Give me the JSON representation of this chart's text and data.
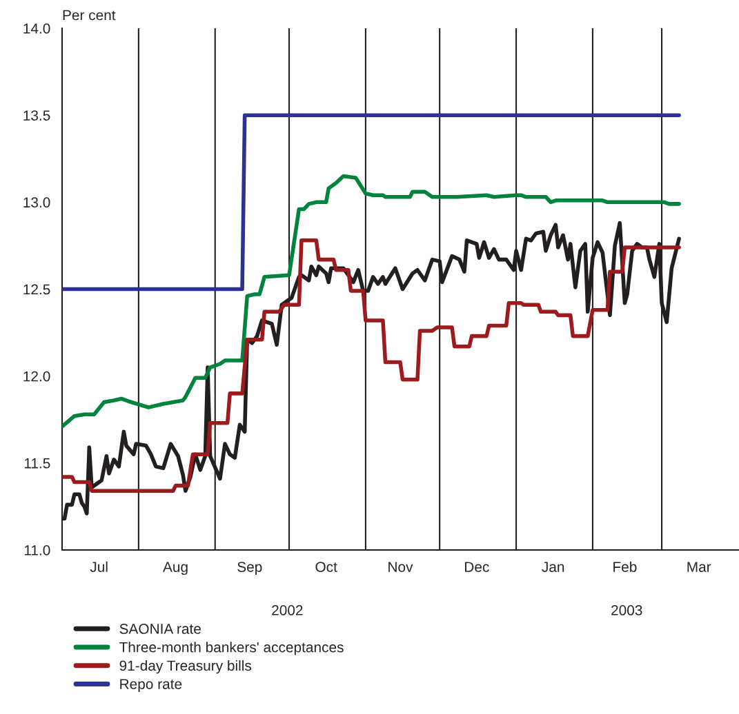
{
  "chart_data": {
    "type": "line",
    "ylabel": "Per cent",
    "xlim": [
      "2002-07-01",
      "2003-04-01"
    ],
    "ylim": [
      11.0,
      14.0
    ],
    "yticks": [
      {
        "value": 11,
        "label": "11.0"
      },
      {
        "value": 11.5,
        "label": "11.5"
      },
      {
        "value": 12,
        "label": "12.0"
      },
      {
        "value": 12.5,
        "label": "12.5"
      },
      {
        "value": 13,
        "label": "13.0"
      },
      {
        "value": 13.5,
        "label": "13.5"
      },
      {
        "value": 14,
        "label": "14.0"
      }
    ],
    "xticks": [
      {
        "value": "2002-07-16",
        "label": "Jul"
      },
      {
        "value": "2002-08-16",
        "label": "Aug"
      },
      {
        "value": "2002-09-15",
        "label": "Sep"
      },
      {
        "value": "2002-10-16",
        "label": "Oct"
      },
      {
        "value": "2002-11-15",
        "label": "Nov"
      },
      {
        "value": "2002-12-16",
        "label": "Dec"
      },
      {
        "value": "2003-01-16",
        "label": "Jan"
      },
      {
        "value": "2003-02-14",
        "label": "Feb"
      },
      {
        "value": "2003-03-16",
        "label": "Mar"
      }
    ],
    "annotations": [
      "2002",
      "2003"
    ],
    "ref_lines": [
      {
        "axis": "x",
        "value": "2002-08-01",
        "color": "#231f20"
      },
      {
        "axis": "x",
        "value": "2002-09-01",
        "color": "#231f20"
      },
      {
        "axis": "x",
        "value": "2002-10-01",
        "color": "#231f20"
      },
      {
        "axis": "x",
        "value": "2002-11-01",
        "color": "#231f20"
      },
      {
        "axis": "x",
        "value": "2002-12-01",
        "color": "#231f20"
      },
      {
        "axis": "x",
        "value": "2003-01-01",
        "color": "#231f20"
      },
      {
        "axis": "x",
        "value": "2003-02-01",
        "color": "#231f20"
      },
      {
        "axis": "x",
        "value": "2003-03-01",
        "color": "#231f20"
      }
    ],
    "grid": false,
    "legend": "bottom",
    "marker": "none",
    "line_style": "solid",
    "series": [
      {
        "name": "SAONIA rate",
        "color": "#231f20",
        "x": [
          "2002-07-01",
          "2002-07-02",
          "2002-07-03",
          "2002-07-05",
          "2002-07-06",
          "2002-07-08",
          "2002-07-09",
          "2002-07-10",
          "2002-07-11",
          "2002-07-12",
          "2002-07-13",
          "2002-07-15",
          "2002-07-17",
          "2002-07-19",
          "2002-07-20",
          "2002-07-22",
          "2002-07-24",
          "2002-07-26",
          "2002-07-27",
          "2002-07-30",
          "2002-07-31",
          "2002-08-04",
          "2002-08-06",
          "2002-08-08",
          "2002-08-11",
          "2002-08-14",
          "2002-08-17",
          "2002-08-19",
          "2002-08-20",
          "2002-08-22",
          "2002-08-24",
          "2002-08-26",
          "2002-08-28",
          "2002-08-29",
          "2002-08-30",
          "2002-09-03",
          "2002-09-05",
          "2002-09-07",
          "2002-09-09",
          "2002-09-11",
          "2002-09-13",
          "2002-09-14",
          "2002-09-16",
          "2002-09-18",
          "2002-09-20",
          "2002-09-24",
          "2002-09-26",
          "2002-09-28",
          "2002-10-02",
          "2002-10-05",
          "2002-10-06",
          "2002-10-09",
          "2002-10-10",
          "2002-10-12",
          "2002-10-13",
          "2002-10-16",
          "2002-10-17",
          "2002-10-18",
          "2002-10-23",
          "2002-10-27",
          "2002-10-29",
          "2002-10-31",
          "2002-11-02",
          "2002-11-04",
          "2002-11-06",
          "2002-11-08",
          "2002-11-09",
          "2002-11-13",
          "2002-11-16",
          "2002-11-20",
          "2002-11-22",
          "2002-11-25",
          "2002-11-28",
          "2002-12-01",
          "2002-12-02",
          "2002-12-06",
          "2002-12-09",
          "2002-12-11",
          "2002-12-12",
          "2002-12-16",
          "2002-12-17",
          "2002-12-19",
          "2002-12-21",
          "2002-12-23",
          "2002-12-25",
          "2002-12-28",
          "2002-12-31",
          "2003-01-01",
          "2003-01-03",
          "2003-01-05",
          "2003-01-07",
          "2003-01-09",
          "2003-01-12",
          "2003-01-13",
          "2003-01-15",
          "2003-01-17",
          "2003-01-18",
          "2003-01-20",
          "2003-01-22",
          "2003-01-23",
          "2003-01-25",
          "2003-01-27",
          "2003-01-29",
          "2003-01-30",
          "2003-02-01",
          "2003-02-03",
          "2003-02-05",
          "2003-02-08",
          "2003-02-10",
          "2003-02-12",
          "2003-02-14",
          "2003-02-15",
          "2003-02-17",
          "2003-02-19",
          "2003-02-21",
          "2003-02-23",
          "2003-02-24",
          "2003-02-26",
          "2003-02-28",
          "2003-03-01",
          "2003-03-03",
          "2003-03-05",
          "2003-03-08"
        ],
        "values": [
          11.18,
          11.18,
          11.26,
          11.26,
          11.32,
          11.32,
          11.27,
          11.25,
          11.21,
          11.59,
          11.36,
          11.38,
          11.4,
          11.54,
          11.44,
          11.52,
          11.48,
          11.68,
          11.6,
          11.55,
          11.61,
          11.6,
          11.55,
          11.48,
          11.47,
          11.61,
          11.54,
          11.43,
          11.34,
          11.42,
          11.55,
          11.46,
          11.54,
          12.05,
          11.54,
          11.41,
          11.61,
          11.55,
          11.53,
          11.72,
          11.68,
          12.21,
          12.19,
          12.23,
          12.32,
          12.3,
          12.18,
          12.41,
          12.45,
          12.57,
          12.58,
          12.55,
          12.63,
          12.58,
          12.63,
          12.59,
          12.54,
          12.62,
          12.62,
          12.54,
          12.61,
          12.49,
          12.49,
          12.57,
          12.53,
          12.57,
          12.53,
          12.62,
          12.5,
          12.59,
          12.61,
          12.55,
          12.67,
          12.66,
          12.54,
          12.69,
          12.67,
          12.6,
          12.78,
          12.76,
          12.68,
          12.77,
          12.68,
          12.73,
          12.67,
          12.67,
          12.61,
          12.72,
          12.61,
          12.79,
          12.78,
          12.82,
          12.83,
          12.72,
          12.81,
          12.87,
          12.74,
          12.81,
          12.67,
          12.76,
          12.51,
          12.72,
          12.76,
          12.37,
          12.68,
          12.77,
          12.71,
          12.35,
          12.75,
          12.88,
          12.42,
          12.47,
          12.72,
          12.76,
          12.74,
          12.74,
          12.67,
          12.57,
          12.76,
          12.42,
          12.31,
          12.62,
          12.79
        ]
      },
      {
        "name": "Three-month bankers' acceptances",
        "color": "#00843d",
        "x": [
          "2002-07-01",
          "2002-07-06",
          "2002-07-10",
          "2002-07-14",
          "2002-07-18",
          "2002-07-22",
          "2002-07-25",
          "2002-07-29",
          "2002-08-05",
          "2002-08-11",
          "2002-08-19",
          "2002-08-20",
          "2002-08-24",
          "2002-08-28",
          "2002-08-30",
          "2002-09-03",
          "2002-09-05",
          "2002-09-12",
          "2002-09-14",
          "2002-09-17",
          "2002-09-19",
          "2002-09-21",
          "2002-10-01",
          "2002-10-05",
          "2002-10-07",
          "2002-10-09",
          "2002-10-12",
          "2002-10-16",
          "2002-10-17",
          "2002-10-20",
          "2002-10-23",
          "2002-10-28",
          "2002-11-01",
          "2002-11-04",
          "2002-11-08",
          "2002-11-09",
          "2002-11-19",
          "2002-11-20",
          "2002-11-25",
          "2002-11-28",
          "2002-12-08",
          "2002-12-20",
          "2002-12-23",
          "2003-01-01",
          "2003-01-03",
          "2003-01-05",
          "2003-01-13",
          "2003-01-15",
          "2003-01-17",
          "2003-02-05",
          "2003-02-07",
          "2003-03-02",
          "2003-03-04",
          "2003-03-08"
        ],
        "values": [
          11.71,
          11.77,
          11.78,
          11.78,
          11.85,
          11.86,
          11.87,
          11.85,
          11.82,
          11.84,
          11.86,
          11.88,
          11.99,
          11.99,
          12.05,
          12.07,
          12.09,
          12.09,
          12.46,
          12.47,
          12.47,
          12.57,
          12.58,
          12.96,
          12.96,
          12.99,
          13.0,
          13.0,
          13.08,
          13.11,
          13.15,
          13.14,
          13.05,
          13.04,
          13.04,
          13.03,
          13.03,
          13.06,
          13.06,
          13.03,
          13.03,
          13.04,
          13.03,
          13.04,
          13.04,
          13.03,
          13.03,
          13.0,
          13.01,
          13.01,
          13.0,
          13.0,
          12.99,
          12.99
        ]
      },
      {
        "name": "91-day Treasury bills",
        "color": "#9b1b1e",
        "x": [
          "2002-07-01",
          "2002-07-05",
          "2002-07-06",
          "2002-07-12",
          "2002-07-13",
          "2002-08-15",
          "2002-08-16",
          "2002-08-21",
          "2002-08-23",
          "2002-08-29",
          "2002-08-30",
          "2002-09-06",
          "2002-09-07",
          "2002-09-12",
          "2002-09-14",
          "2002-09-20",
          "2002-09-21",
          "2002-09-27",
          "2002-09-29",
          "2002-10-05",
          "2002-10-06",
          "2002-10-12",
          "2002-10-13",
          "2002-10-19",
          "2002-10-20",
          "2002-10-25",
          "2002-10-26",
          "2002-10-31",
          "2002-11-01",
          "2002-11-08",
          "2002-11-09",
          "2002-11-15",
          "2002-11-16",
          "2002-11-22",
          "2002-11-23",
          "2002-11-28",
          "2002-11-30",
          "2002-12-06",
          "2002-12-07",
          "2002-12-13",
          "2002-12-14",
          "2002-12-20",
          "2002-12-21",
          "2002-12-28",
          "2002-12-29",
          "2003-01-03",
          "2003-01-04",
          "2003-01-10",
          "2003-01-11",
          "2003-01-17",
          "2003-01-18",
          "2003-01-23",
          "2003-01-24",
          "2003-01-30",
          "2003-02-01",
          "2003-02-07",
          "2003-02-08",
          "2003-02-13",
          "2003-02-14",
          "2003-03-08"
        ],
        "values": [
          11.42,
          11.42,
          11.39,
          11.39,
          11.34,
          11.34,
          11.37,
          11.37,
          11.55,
          11.55,
          11.73,
          11.73,
          11.9,
          11.9,
          12.21,
          12.21,
          12.37,
          12.37,
          12.41,
          12.41,
          12.78,
          12.78,
          12.67,
          12.67,
          12.61,
          12.61,
          12.49,
          12.49,
          12.32,
          12.32,
          12.08,
          12.08,
          11.98,
          11.98,
          12.26,
          12.26,
          12.28,
          12.28,
          12.17,
          12.17,
          12.23,
          12.23,
          12.29,
          12.29,
          12.42,
          12.42,
          12.41,
          12.41,
          12.37,
          12.37,
          12.35,
          12.35,
          12.23,
          12.23,
          12.38,
          12.38,
          12.6,
          12.6,
          12.74,
          12.74
        ]
      },
      {
        "name": "Repo rate",
        "color": "#2e3192",
        "x": [
          "2002-07-01",
          "2002-09-12",
          "2002-09-13",
          "2003-03-08"
        ],
        "values": [
          12.5,
          12.5,
          13.5,
          13.5
        ]
      }
    ]
  }
}
